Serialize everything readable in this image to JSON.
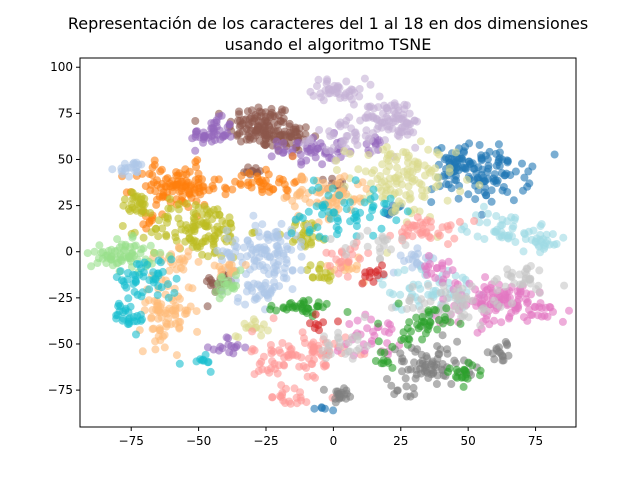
{
  "chart_data": {
    "type": "scatter",
    "title_line1": "Representación de los caracteres del 1 al 18 en dos dimensiones",
    "title_line2": "usando el algoritmo TSNE",
    "xlabel": "",
    "ylabel": "",
    "xlim": [
      -94,
      90
    ],
    "ylim": [
      -95,
      105
    ],
    "xticks": [
      -75,
      -50,
      -25,
      0,
      25,
      50,
      75
    ],
    "yticks": [
      -75,
      -50,
      -25,
      0,
      25,
      50,
      75,
      100
    ],
    "grid": false,
    "legend": "none",
    "marker_alpha": 0.6,
    "clusters": [
      {
        "color": "#8c564b",
        "blobs": [
          {
            "cx": -27,
            "cy": 68,
            "sx": 6,
            "sy": 6,
            "n": 110
          },
          {
            "cx": -16,
            "cy": 62,
            "sx": 4,
            "sy": 4,
            "n": 40
          },
          {
            "cx": -30,
            "cy": 44,
            "sx": 2,
            "sy": 2,
            "n": 10
          },
          {
            "cx": -42,
            "cy": -17,
            "sx": 3,
            "sy": 3,
            "n": 20
          },
          {
            "cx": 1,
            "cy": 37,
            "sx": 2,
            "sy": 2,
            "n": 10
          }
        ]
      },
      {
        "color": "#9467bd",
        "blobs": [
          {
            "cx": -45,
            "cy": 64,
            "sx": 4,
            "sy": 4,
            "n": 45
          },
          {
            "cx": -8,
            "cy": 55,
            "sx": 6,
            "sy": 4,
            "n": 50
          },
          {
            "cx": -39,
            "cy": -52,
            "sx": 3,
            "sy": 3,
            "n": 15
          },
          {
            "cx": 15,
            "cy": 58,
            "sx": 2,
            "sy": 2,
            "n": 10
          }
        ]
      },
      {
        "color": "#c5b0d5",
        "blobs": [
          {
            "cx": 2,
            "cy": 88,
            "sx": 5,
            "sy": 3,
            "n": 40
          },
          {
            "cx": 18,
            "cy": 74,
            "sx": 7,
            "sy": 4,
            "n": 50
          },
          {
            "cx": 8,
            "cy": 62,
            "sx": 8,
            "sy": 5,
            "n": 50
          },
          {
            "cx": 27,
            "cy": 68,
            "sx": 3,
            "sy": 3,
            "n": 20
          }
        ]
      },
      {
        "color": "#1f77b4",
        "blobs": [
          {
            "cx": 55,
            "cy": 42,
            "sx": 9,
            "sy": 8,
            "n": 110
          },
          {
            "cx": 46,
            "cy": 50,
            "sx": 3,
            "sy": 3,
            "n": 25
          },
          {
            "cx": 22,
            "cy": 22,
            "sx": 2,
            "sy": 2,
            "n": 10
          },
          {
            "cx": -3,
            "cy": -85,
            "sx": 2,
            "sy": 1,
            "n": 5
          }
        ]
      },
      {
        "color": "#dbdb8d",
        "blobs": [
          {
            "cx": 25,
            "cy": 38,
            "sx": 10,
            "sy": 10,
            "n": 120
          },
          {
            "cx": -30,
            "cy": -40,
            "sx": 3,
            "sy": 3,
            "n": 15
          }
        ]
      },
      {
        "color": "#ff7f0e",
        "blobs": [
          {
            "cx": -58,
            "cy": 35,
            "sx": 8,
            "sy": 6,
            "n": 110
          },
          {
            "cx": -25,
            "cy": 38,
            "sx": 6,
            "sy": 4,
            "n": 40
          },
          {
            "cx": -68,
            "cy": 17,
            "sx": 2,
            "sy": 2,
            "n": 8
          }
        ]
      },
      {
        "color": "#bcbd22",
        "blobs": [
          {
            "cx": -50,
            "cy": 12,
            "sx": 9,
            "sy": 8,
            "n": 120
          },
          {
            "cx": -73,
            "cy": 26,
            "sx": 3,
            "sy": 3,
            "n": 25
          },
          {
            "cx": -10,
            "cy": 10,
            "sx": 4,
            "sy": 4,
            "n": 25
          },
          {
            "cx": -5,
            "cy": -12,
            "sx": 3,
            "sy": 3,
            "n": 15
          }
        ]
      },
      {
        "color": "#aec7e8",
        "blobs": [
          {
            "cx": -74,
            "cy": 45,
            "sx": 3,
            "sy": 2,
            "n": 20
          },
          {
            "cx": -25,
            "cy": 0,
            "sx": 8,
            "sy": 9,
            "n": 120
          },
          {
            "cx": -28,
            "cy": -22,
            "sx": 4,
            "sy": 4,
            "n": 25
          },
          {
            "cx": 32,
            "cy": -5,
            "sx": 3,
            "sy": 3,
            "n": 20
          }
        ]
      },
      {
        "color": "#ffbb78",
        "blobs": [
          {
            "cx": -62,
            "cy": -32,
            "sx": 5,
            "sy": 9,
            "n": 80
          },
          {
            "cx": -58,
            "cy": -5,
            "sx": 4,
            "sy": 3,
            "n": 20
          },
          {
            "cx": -2,
            "cy": 30,
            "sx": 8,
            "sy": 6,
            "n": 70
          },
          {
            "cx": -40,
            "cy": -8,
            "sx": 3,
            "sy": 3,
            "n": 15
          },
          {
            "cx": 5,
            "cy": -8,
            "sx": 3,
            "sy": 3,
            "n": 15
          }
        ]
      },
      {
        "color": "#98df8a",
        "blobs": [
          {
            "cx": -78,
            "cy": -2,
            "sx": 6,
            "sy": 4,
            "n": 70
          },
          {
            "cx": -39,
            "cy": -20,
            "sx": 3,
            "sy": 4,
            "n": 20
          }
        ]
      },
      {
        "color": "#17becf",
        "blobs": [
          {
            "cx": -70,
            "cy": -15,
            "sx": 6,
            "sy": 6,
            "n": 50
          },
          {
            "cx": -75,
            "cy": -35,
            "sx": 3,
            "sy": 4,
            "n": 25
          },
          {
            "cx": 2,
            "cy": 22,
            "sx": 10,
            "sy": 7,
            "n": 60
          },
          {
            "cx": -48,
            "cy": -60,
            "sx": 3,
            "sy": 3,
            "n": 10
          }
        ]
      },
      {
        "color": "#9edae5",
        "blobs": [
          {
            "cx": 65,
            "cy": 12,
            "sx": 8,
            "sy": 5,
            "n": 50
          },
          {
            "cx": 35,
            "cy": -20,
            "sx": 9,
            "sy": 6,
            "n": 60
          },
          {
            "cx": 78,
            "cy": 5,
            "sx": 3,
            "sy": 3,
            "n": 15
          }
        ]
      },
      {
        "color": "#ff9896",
        "blobs": [
          {
            "cx": -12,
            "cy": -58,
            "sx": 9,
            "sy": 8,
            "n": 90
          },
          {
            "cx": 35,
            "cy": 12,
            "sx": 6,
            "sy": 4,
            "n": 40
          },
          {
            "cx": -17,
            "cy": -80,
            "sx": 3,
            "sy": 2,
            "n": 15
          },
          {
            "cx": 5,
            "cy": -2,
            "sx": 4,
            "sy": 4,
            "n": 20
          }
        ]
      },
      {
        "color": "#e377c2",
        "blobs": [
          {
            "cx": 62,
            "cy": -28,
            "sx": 13,
            "sy": 6,
            "n": 120
          },
          {
            "cx": 15,
            "cy": -45,
            "sx": 5,
            "sy": 5,
            "n": 30
          },
          {
            "cx": 40,
            "cy": -10,
            "sx": 4,
            "sy": 4,
            "n": 20
          }
        ]
      },
      {
        "color": "#c7c7c7",
        "blobs": [
          {
            "cx": 45,
            "cy": -28,
            "sx": 10,
            "sy": 6,
            "n": 60
          },
          {
            "cx": 70,
            "cy": -15,
            "sx": 6,
            "sy": 4,
            "n": 30
          },
          {
            "cx": 5,
            "cy": -50,
            "sx": 5,
            "sy": 5,
            "n": 25
          },
          {
            "cx": 15,
            "cy": 5,
            "sx": 5,
            "sy": 4,
            "n": 20
          }
        ]
      },
      {
        "color": "#7f7f7f",
        "blobs": [
          {
            "cx": 35,
            "cy": -62,
            "sx": 8,
            "sy": 6,
            "n": 70
          },
          {
            "cx": 3,
            "cy": -78,
            "sx": 3,
            "sy": 2,
            "n": 20
          },
          {
            "cx": 62,
            "cy": -55,
            "sx": 4,
            "sy": 3,
            "n": 15
          },
          {
            "cx": 25,
            "cy": -75,
            "sx": 2,
            "sy": 2,
            "n": 8
          }
        ]
      },
      {
        "color": "#2ca02c",
        "blobs": [
          {
            "cx": -10,
            "cy": -30,
            "sx": 6,
            "sy": 2,
            "n": 35
          },
          {
            "cx": 32,
            "cy": -40,
            "sx": 5,
            "sy": 5,
            "n": 40
          },
          {
            "cx": 48,
            "cy": -66,
            "sx": 4,
            "sy": 3,
            "n": 20
          },
          {
            "cx": 20,
            "cy": -58,
            "sx": 3,
            "sy": 3,
            "n": 10
          }
        ]
      },
      {
        "color": "#d62728",
        "blobs": [
          {
            "cx": 15,
            "cy": -12,
            "sx": 4,
            "sy": 3,
            "n": 12
          },
          {
            "cx": -5,
            "cy": -40,
            "sx": 3,
            "sy": 3,
            "n": 8
          }
        ]
      }
    ]
  }
}
